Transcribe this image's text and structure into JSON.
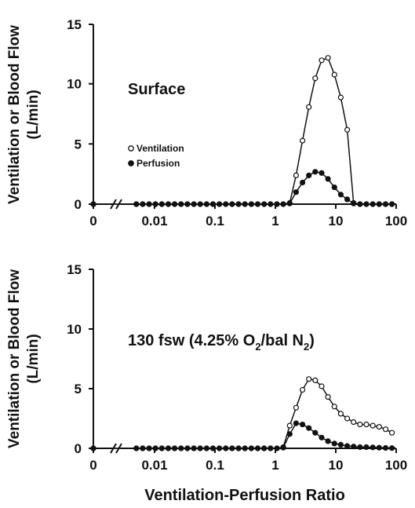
{
  "figure": {
    "xlabel": "Ventilation-Perfusion Ratio",
    "ylabel_line1": "Ventilation or Blood Flow",
    "ylabel_line2": "(L/min)"
  },
  "chart_data": [
    {
      "type": "line",
      "annotation": "Surface",
      "ylim": [
        0,
        15
      ],
      "yticks": [
        "0",
        "5",
        "10",
        "15"
      ],
      "xscale": "log (with axis break between 0 and 0.005)",
      "xticks": [
        "0",
        "0.01",
        "0.1",
        "1",
        "10",
        "100"
      ],
      "xlabel": "",
      "ylabel": "Ventilation or Blood Flow (L/min)",
      "legend": {
        "placement": "middle-left",
        "entries": [
          "Ventilation",
          "Perfusion"
        ]
      },
      "series": [
        {
          "name": "Ventilation",
          "marker": "open-circle",
          "x": [
            0,
            0.005,
            0.00637,
            0.00813,
            0.01036,
            0.01322,
            0.01686,
            0.0215,
            0.02742,
            0.03497,
            0.0446,
            0.05689,
            0.07256,
            0.09254,
            0.118,
            0.1505,
            0.192,
            0.2449,
            0.3124,
            0.3984,
            0.5081,
            0.6481,
            0.8265,
            1.054,
            1.345,
            1.715,
            2.187,
            2.79,
            3.558,
            4.538,
            5.788,
            7.382,
            9.415,
            12.01,
            15.32,
            19.53,
            24.91,
            31.78,
            40.53,
            51.69,
            65.93,
            84.09
          ],
          "y": [
            0,
            0,
            0,
            0,
            0,
            0,
            0,
            0,
            0,
            0,
            0,
            0,
            0,
            0,
            0,
            0,
            0,
            0,
            0,
            0,
            0,
            0,
            0,
            0,
            0,
            0.1,
            2.4,
            5.3,
            8.1,
            10.5,
            12.0,
            12.2,
            10.8,
            8.9,
            6.2,
            0.1,
            0,
            0,
            0,
            0,
            0,
            0
          ]
        },
        {
          "name": "Perfusion",
          "marker": "filled-circle",
          "x": [
            0,
            0.005,
            0.00637,
            0.00813,
            0.01036,
            0.01322,
            0.01686,
            0.0215,
            0.02742,
            0.03497,
            0.0446,
            0.05689,
            0.07256,
            0.09254,
            0.118,
            0.1505,
            0.192,
            0.2449,
            0.3124,
            0.3984,
            0.5081,
            0.6481,
            0.8265,
            1.054,
            1.345,
            1.715,
            2.187,
            2.79,
            3.558,
            4.538,
            5.788,
            7.382,
            9.415,
            12.01,
            15.32,
            19.53,
            24.91,
            31.78,
            40.53,
            51.69,
            65.93,
            84.09
          ],
          "y": [
            0,
            0,
            0,
            0,
            0,
            0,
            0,
            0,
            0,
            0,
            0,
            0,
            0,
            0,
            0,
            0,
            0,
            0,
            0,
            0,
            0,
            0,
            0,
            0,
            0,
            0.05,
            1.0,
            1.8,
            2.4,
            2.7,
            2.6,
            2.1,
            1.4,
            0.8,
            0.4,
            0.05,
            0,
            0,
            0,
            0,
            0,
            0
          ]
        }
      ]
    },
    {
      "type": "line",
      "annotation": "130 fsw (4.25% O2/bal N2)",
      "ylim": [
        0,
        15
      ],
      "yticks": [
        "0",
        "5",
        "10",
        "15"
      ],
      "xscale": "log (with axis break between 0 and 0.005)",
      "xticks": [
        "0",
        "0.01",
        "0.1",
        "1",
        "10",
        "100"
      ],
      "xlabel": "Ventilation-Perfusion Ratio",
      "ylabel": "Ventilation or Blood Flow (L/min)",
      "series": [
        {
          "name": "Ventilation",
          "marker": "open-circle",
          "x": [
            0,
            0.005,
            0.00637,
            0.00813,
            0.01036,
            0.01322,
            0.01686,
            0.0215,
            0.02742,
            0.03497,
            0.0446,
            0.05689,
            0.07256,
            0.09254,
            0.118,
            0.1505,
            0.192,
            0.2449,
            0.3124,
            0.3984,
            0.5081,
            0.6481,
            0.8265,
            1.054,
            1.345,
            1.715,
            2.187,
            2.79,
            3.558,
            4.538,
            5.788,
            7.382,
            9.415,
            12.01,
            15.32,
            19.53,
            24.91,
            31.78,
            40.53,
            51.69,
            65.93,
            84.09
          ],
          "y": [
            0,
            0,
            0,
            0,
            0,
            0,
            0,
            0,
            0,
            0,
            0,
            0,
            0,
            0,
            0,
            0,
            0,
            0,
            0,
            0,
            0,
            0,
            0,
            0,
            0.1,
            1.9,
            3.4,
            4.9,
            5.8,
            5.7,
            5.2,
            4.3,
            3.5,
            2.9,
            2.5,
            2.2,
            2.0,
            2.0,
            1.9,
            1.8,
            1.6,
            1.3
          ]
        },
        {
          "name": "Perfusion",
          "marker": "filled-circle",
          "x": [
            0,
            0.005,
            0.00637,
            0.00813,
            0.01036,
            0.01322,
            0.01686,
            0.0215,
            0.02742,
            0.03497,
            0.0446,
            0.05689,
            0.07256,
            0.09254,
            0.118,
            0.1505,
            0.192,
            0.2449,
            0.3124,
            0.3984,
            0.5081,
            0.6481,
            0.8265,
            1.054,
            1.345,
            1.715,
            2.187,
            2.79,
            3.558,
            4.538,
            5.788,
            7.382,
            9.415,
            12.01,
            15.32,
            19.53,
            24.91,
            31.78,
            40.53,
            51.69,
            65.93,
            84.09
          ],
          "y": [
            0,
            0,
            0,
            0,
            0,
            0,
            0,
            0,
            0,
            0,
            0,
            0,
            0,
            0,
            0,
            0,
            0,
            0,
            0,
            0,
            0,
            0,
            0,
            0,
            0.05,
            1.2,
            2.1,
            2.0,
            1.7,
            1.3,
            0.9,
            0.6,
            0.4,
            0.3,
            0.2,
            0.15,
            0.1,
            0.1,
            0.08,
            0.05,
            0.03,
            0.02
          ]
        }
      ]
    }
  ]
}
